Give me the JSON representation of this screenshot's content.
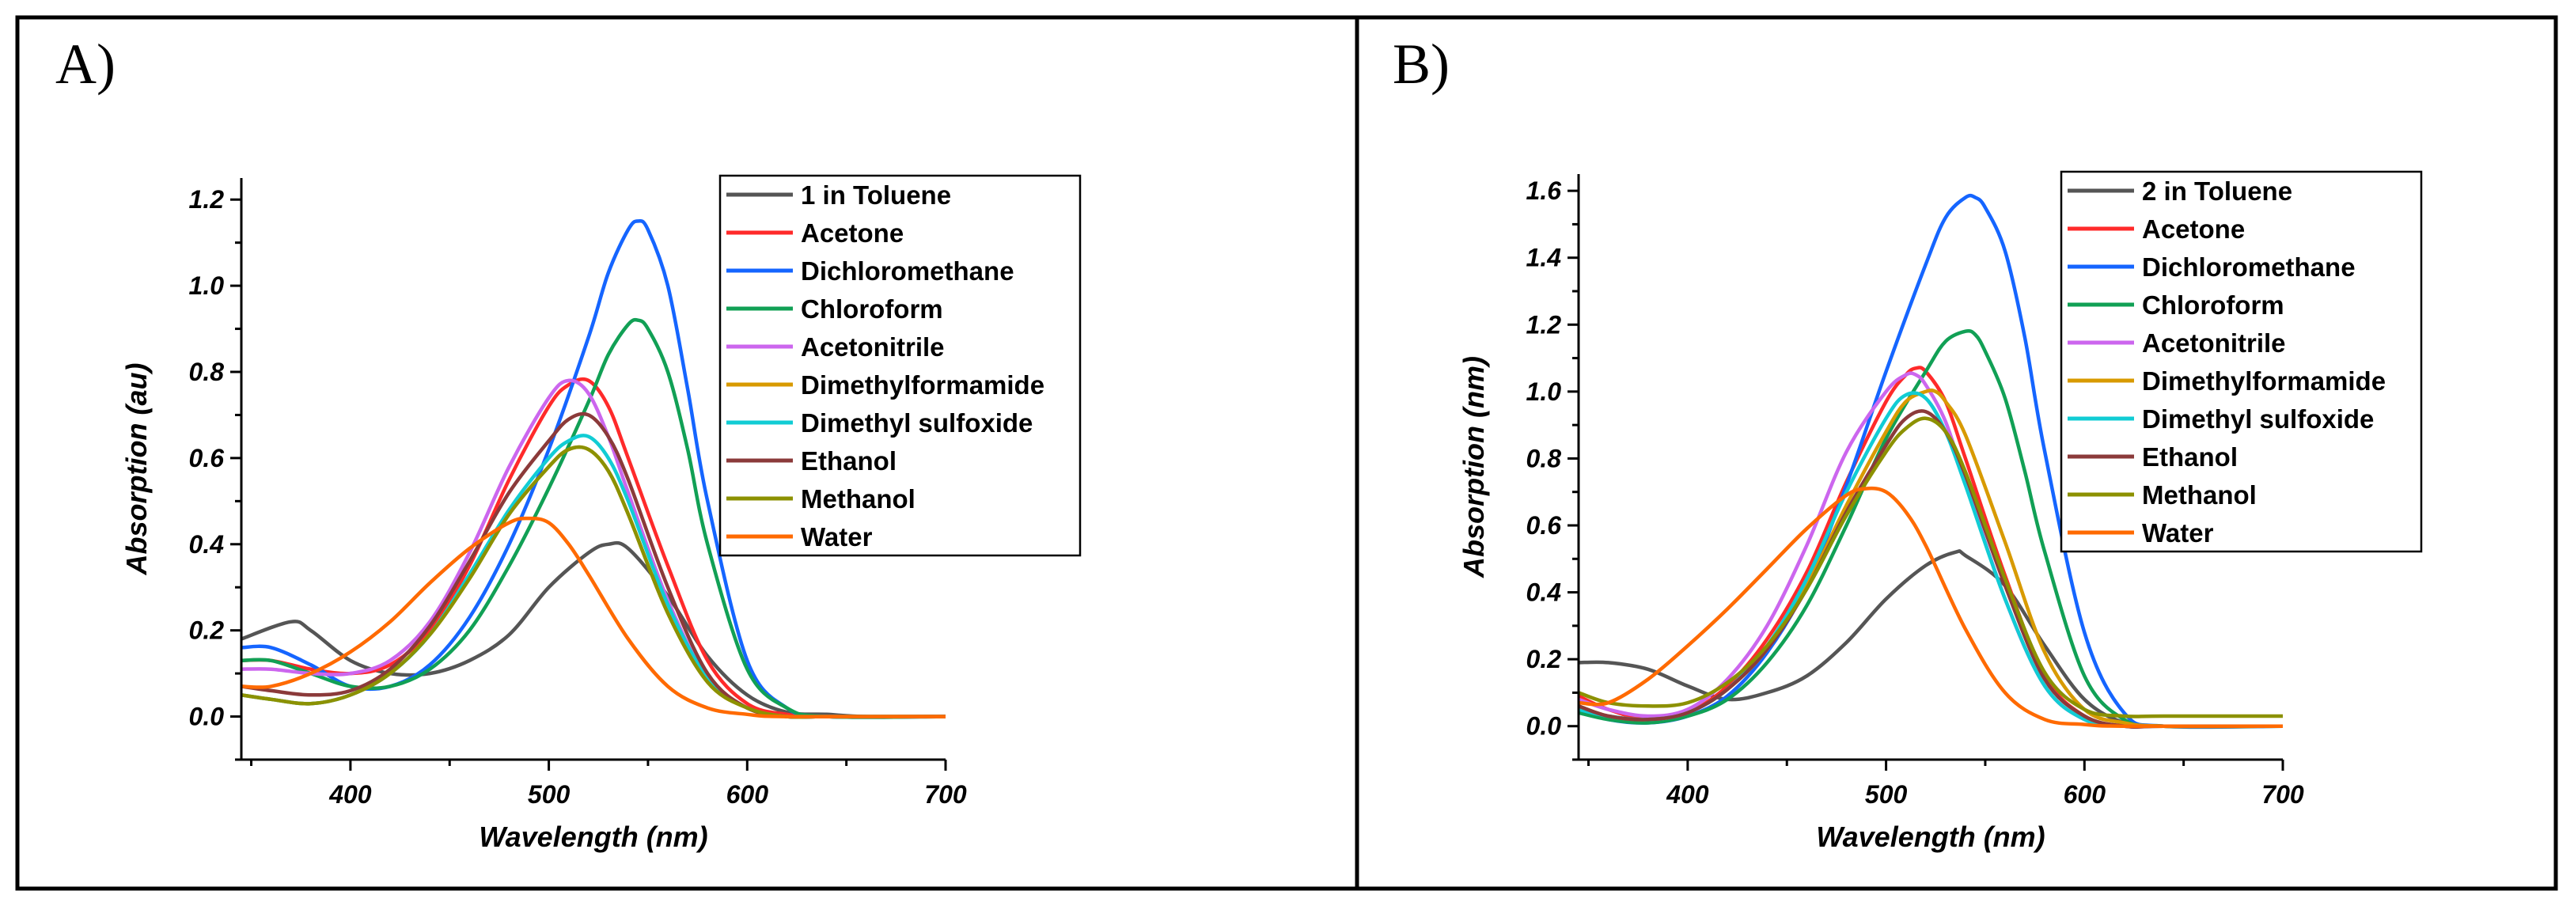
{
  "chart_data": [
    {
      "panel": "A)",
      "type": "line",
      "xlabel": "Wavelength (nm)",
      "ylabel": "Absorption (au)",
      "xlim": [
        345,
        700
      ],
      "ylim": [
        -0.1,
        1.25
      ],
      "xticks": [
        400,
        500,
        600,
        700
      ],
      "yticks": [
        0.0,
        0.2,
        0.4,
        0.6,
        0.8,
        1.0,
        1.2
      ],
      "ytick_labels": [
        "0.0",
        "0.2",
        "0.4",
        "0.6",
        "0.8",
        "1.0",
        "1.2"
      ],
      "legend_position": "top-right",
      "series": [
        {
          "name": "1 in Toluene",
          "color": "#555555",
          "x": [
            345,
            370,
            380,
            400,
            420,
            440,
            460,
            480,
            500,
            520,
            530,
            540,
            560,
            580,
            600,
            620,
            640,
            660,
            700
          ],
          "y": [
            0.18,
            0.22,
            0.2,
            0.13,
            0.1,
            0.1,
            0.13,
            0.19,
            0.3,
            0.38,
            0.4,
            0.39,
            0.28,
            0.14,
            0.05,
            0.01,
            0.005,
            0,
            0
          ]
        },
        {
          "name": "Acetone",
          "color": "#ff2a2a",
          "x": [
            345,
            360,
            380,
            400,
            420,
            440,
            460,
            480,
            500,
            510,
            520,
            530,
            540,
            560,
            580,
            600,
            620,
            640,
            700
          ],
          "y": [
            0.13,
            0.13,
            0.11,
            0.1,
            0.12,
            0.2,
            0.35,
            0.55,
            0.72,
            0.77,
            0.78,
            0.72,
            0.6,
            0.35,
            0.13,
            0.03,
            0.005,
            0,
            0
          ]
        },
        {
          "name": "Dichloromethane",
          "color": "#1565ff",
          "x": [
            345,
            360,
            380,
            400,
            420,
            440,
            460,
            480,
            500,
            520,
            530,
            540,
            545,
            550,
            560,
            570,
            580,
            600,
            620,
            640,
            700
          ],
          "y": [
            0.16,
            0.16,
            0.12,
            0.07,
            0.07,
            0.12,
            0.23,
            0.4,
            0.62,
            0.88,
            1.03,
            1.13,
            1.15,
            1.13,
            1.0,
            0.76,
            0.5,
            0.13,
            0.02,
            0,
            0
          ]
        },
        {
          "name": "Chloroform",
          "color": "#11a055",
          "x": [
            345,
            360,
            380,
            400,
            420,
            440,
            460,
            480,
            500,
            520,
            530,
            540,
            545,
            550,
            560,
            570,
            580,
            600,
            620,
            640,
            700
          ],
          "y": [
            0.13,
            0.13,
            0.1,
            0.07,
            0.07,
            0.11,
            0.2,
            0.35,
            0.53,
            0.73,
            0.84,
            0.91,
            0.92,
            0.9,
            0.8,
            0.62,
            0.4,
            0.11,
            0.02,
            0,
            0
          ]
        },
        {
          "name": "Acetonitrile",
          "color": "#cc66ee",
          "x": [
            345,
            360,
            380,
            400,
            420,
            440,
            460,
            480,
            500,
            510,
            520,
            530,
            540,
            560,
            580,
            600,
            620,
            640,
            700
          ],
          "y": [
            0.11,
            0.11,
            0.1,
            0.1,
            0.13,
            0.22,
            0.38,
            0.58,
            0.74,
            0.78,
            0.75,
            0.65,
            0.52,
            0.27,
            0.09,
            0.02,
            0,
            0,
            0
          ]
        },
        {
          "name": "Dimethylformamide",
          "color": "#d89a00",
          "x": [
            345,
            360,
            380,
            400,
            420,
            440,
            460,
            480,
            500,
            510,
            520,
            530,
            540,
            560,
            580,
            600,
            620,
            640,
            700
          ],
          "y": [
            0.05,
            0.04,
            0.03,
            0.05,
            0.1,
            0.19,
            0.32,
            0.47,
            0.58,
            0.62,
            0.62,
            0.57,
            0.47,
            0.24,
            0.08,
            0.02,
            0,
            0,
            0
          ]
        },
        {
          "name": "Dimethyl sulfoxide",
          "color": "#11ccd4",
          "x": [
            345,
            360,
            380,
            400,
            420,
            440,
            460,
            480,
            500,
            510,
            520,
            530,
            540,
            560,
            580,
            600,
            620,
            640,
            700
          ],
          "y": [
            0.05,
            0.04,
            0.03,
            0.05,
            0.1,
            0.19,
            0.33,
            0.48,
            0.6,
            0.64,
            0.65,
            0.6,
            0.5,
            0.26,
            0.09,
            0.02,
            0,
            0,
            0
          ]
        },
        {
          "name": "Ethanol",
          "color": "#8b3a3a",
          "x": [
            345,
            360,
            380,
            400,
            420,
            440,
            460,
            480,
            500,
            510,
            520,
            530,
            540,
            560,
            580,
            600,
            620,
            640,
            700
          ],
          "y": [
            0.07,
            0.06,
            0.05,
            0.06,
            0.11,
            0.21,
            0.36,
            0.52,
            0.64,
            0.69,
            0.7,
            0.65,
            0.55,
            0.3,
            0.1,
            0.02,
            0,
            0,
            0
          ]
        },
        {
          "name": "Methanol",
          "color": "#8c9100",
          "x": [
            345,
            360,
            380,
            400,
            420,
            440,
            460,
            480,
            500,
            510,
            520,
            530,
            540,
            560,
            580,
            600,
            620,
            640,
            700
          ],
          "y": [
            0.05,
            0.04,
            0.03,
            0.05,
            0.1,
            0.19,
            0.32,
            0.47,
            0.58,
            0.62,
            0.62,
            0.57,
            0.47,
            0.24,
            0.08,
            0.02,
            0,
            0,
            0
          ]
        },
        {
          "name": "Water",
          "color": "#ff6a00",
          "x": [
            345,
            360,
            380,
            400,
            420,
            440,
            460,
            480,
            490,
            500,
            510,
            520,
            540,
            560,
            580,
            600,
            620,
            700
          ],
          "y": [
            0.07,
            0.07,
            0.1,
            0.15,
            0.22,
            0.31,
            0.39,
            0.45,
            0.46,
            0.45,
            0.4,
            0.33,
            0.18,
            0.07,
            0.02,
            0.005,
            0,
            0
          ]
        }
      ]
    },
    {
      "panel": "B)",
      "type": "line",
      "xlabel": "Wavelength (nm)",
      "ylabel": "Absorption (nm)",
      "xlim": [
        345,
        700
      ],
      "ylim": [
        -0.1,
        1.65
      ],
      "xticks": [
        400,
        500,
        600,
        700
      ],
      "yticks": [
        0.0,
        0.2,
        0.4,
        0.6,
        0.8,
        1.0,
        1.2,
        1.4,
        1.6
      ],
      "ytick_labels": [
        "0.0",
        "0.2",
        "0.4",
        "0.6",
        "0.8",
        "1.0",
        "1.2",
        "1.4",
        "1.6"
      ],
      "legend_position": "top-right",
      "series": [
        {
          "name": "2 in Toluene",
          "color": "#555555",
          "x": [
            345,
            360,
            380,
            400,
            420,
            440,
            460,
            480,
            500,
            520,
            535,
            540,
            560,
            580,
            600,
            620,
            640,
            700
          ],
          "y": [
            0.19,
            0.19,
            0.17,
            0.12,
            0.08,
            0.1,
            0.15,
            0.25,
            0.38,
            0.48,
            0.52,
            0.51,
            0.42,
            0.24,
            0.08,
            0.01,
            0,
            0
          ]
        },
        {
          "name": "Acetone",
          "color": "#ff2a2a",
          "x": [
            345,
            360,
            380,
            400,
            420,
            440,
            460,
            480,
            500,
            510,
            515,
            520,
            530,
            540,
            560,
            580,
            600,
            620,
            640,
            700
          ],
          "y": [
            0.09,
            0.05,
            0.02,
            0.04,
            0.12,
            0.26,
            0.46,
            0.73,
            0.97,
            1.05,
            1.07,
            1.06,
            0.97,
            0.8,
            0.45,
            0.15,
            0.03,
            0,
            0,
            0
          ]
        },
        {
          "name": "Dichloromethane",
          "color": "#1565ff",
          "x": [
            345,
            360,
            380,
            400,
            420,
            440,
            460,
            480,
            500,
            520,
            530,
            540,
            545,
            550,
            560,
            570,
            580,
            600,
            620,
            640,
            700
          ],
          "y": [
            0.05,
            0.02,
            0.01,
            0.03,
            0.09,
            0.22,
            0.42,
            0.72,
            1.06,
            1.38,
            1.52,
            1.58,
            1.58,
            1.55,
            1.42,
            1.16,
            0.82,
            0.28,
            0.04,
            0,
            0
          ]
        },
        {
          "name": "Chloroform",
          "color": "#11a055",
          "x": [
            345,
            360,
            380,
            400,
            420,
            440,
            460,
            480,
            500,
            520,
            530,
            540,
            545,
            550,
            560,
            570,
            580,
            600,
            620,
            640,
            700
          ],
          "y": [
            0.04,
            0.02,
            0.01,
            0.03,
            0.08,
            0.19,
            0.36,
            0.6,
            0.86,
            1.06,
            1.15,
            1.18,
            1.17,
            1.12,
            0.98,
            0.76,
            0.52,
            0.15,
            0.02,
            0,
            0
          ]
        },
        {
          "name": "Acetonitrile",
          "color": "#cc66ee",
          "x": [
            345,
            360,
            380,
            400,
            420,
            440,
            460,
            480,
            500,
            510,
            515,
            520,
            530,
            540,
            560,
            580,
            600,
            620,
            640,
            700
          ],
          "y": [
            0.08,
            0.05,
            0.03,
            0.05,
            0.14,
            0.3,
            0.54,
            0.82,
            1.0,
            1.05,
            1.05,
            1.02,
            0.91,
            0.73,
            0.38,
            0.12,
            0.02,
            0,
            0,
            0
          ]
        },
        {
          "name": "Dimethylformamide",
          "color": "#d89a00",
          "x": [
            345,
            360,
            380,
            400,
            420,
            440,
            460,
            480,
            500,
            510,
            520,
            525,
            530,
            540,
            560,
            580,
            600,
            620,
            640,
            700
          ],
          "y": [
            0.06,
            0.03,
            0.02,
            0.04,
            0.11,
            0.23,
            0.42,
            0.66,
            0.88,
            0.97,
            1.0,
            1.0,
            0.97,
            0.87,
            0.55,
            0.22,
            0.05,
            0.01,
            0,
            0
          ]
        },
        {
          "name": "Dimethyl sulfoxide",
          "color": "#11ccd4",
          "x": [
            345,
            360,
            380,
            400,
            420,
            440,
            460,
            480,
            500,
            510,
            520,
            530,
            540,
            560,
            580,
            600,
            620,
            640,
            700
          ],
          "y": [
            0.05,
            0.03,
            0.02,
            0.04,
            0.11,
            0.24,
            0.44,
            0.7,
            0.92,
            0.99,
            0.98,
            0.88,
            0.72,
            0.38,
            0.12,
            0.02,
            0,
            0,
            0
          ]
        },
        {
          "name": "Ethanol",
          "color": "#8b3a3a",
          "x": [
            345,
            360,
            380,
            400,
            420,
            440,
            460,
            480,
            500,
            510,
            520,
            530,
            540,
            560,
            580,
            600,
            620,
            640,
            700
          ],
          "y": [
            0.06,
            0.03,
            0.02,
            0.04,
            0.11,
            0.23,
            0.41,
            0.64,
            0.84,
            0.92,
            0.94,
            0.88,
            0.75,
            0.42,
            0.14,
            0.03,
            0,
            0,
            0
          ]
        },
        {
          "name": "Methanol",
          "color": "#8c9100",
          "x": [
            345,
            360,
            380,
            400,
            420,
            440,
            460,
            480,
            500,
            510,
            520,
            530,
            540,
            560,
            580,
            600,
            620,
            640,
            700
          ],
          "y": [
            0.1,
            0.07,
            0.06,
            0.07,
            0.13,
            0.24,
            0.41,
            0.63,
            0.82,
            0.89,
            0.92,
            0.88,
            0.76,
            0.44,
            0.16,
            0.05,
            0.03,
            0.03,
            0.03
          ]
        },
        {
          "name": "Water",
          "color": "#ff6a00",
          "x": [
            345,
            360,
            380,
            400,
            420,
            440,
            460,
            480,
            490,
            500,
            510,
            520,
            540,
            560,
            580,
            600,
            620,
            700
          ],
          "y": [
            0.07,
            0.07,
            0.14,
            0.24,
            0.35,
            0.47,
            0.59,
            0.69,
            0.71,
            0.7,
            0.64,
            0.54,
            0.29,
            0.1,
            0.02,
            0.005,
            0,
            0
          ]
        }
      ]
    }
  ]
}
